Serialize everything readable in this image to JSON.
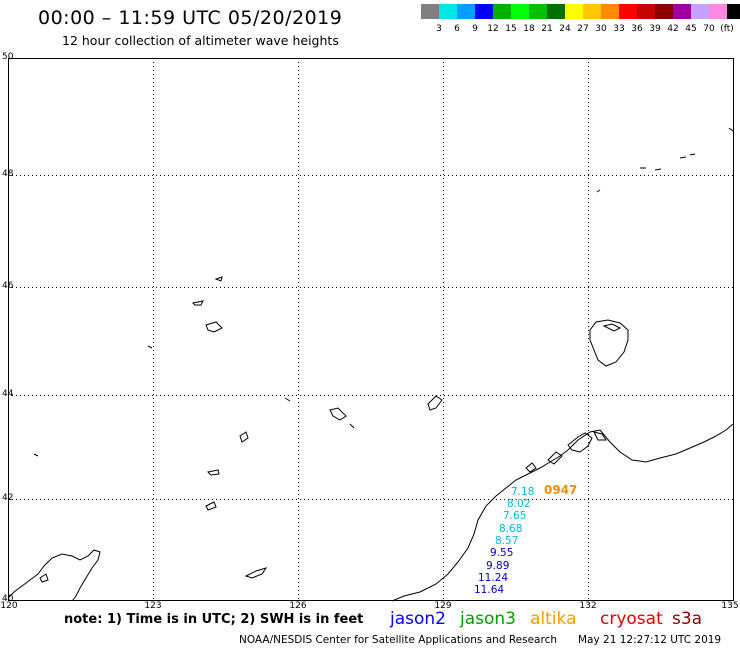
{
  "header": {
    "title": "00:00 – 11:59 UTC 05/20/2019",
    "subtitle": "12 hour collection of altimeter wave heights"
  },
  "legend": {
    "unit": "(ft)",
    "items": [
      {
        "color": "#808080",
        "label": ""
      },
      {
        "color": "#00e5e5",
        "label": "3"
      },
      {
        "color": "#00a0ff",
        "label": "6"
      },
      {
        "color": "#0000ff",
        "label": "9"
      },
      {
        "color": "#00b000",
        "label": "12"
      },
      {
        "color": "#00ff00",
        "label": "15"
      },
      {
        "color": "#00c000",
        "label": "18"
      },
      {
        "color": "#007000",
        "label": "21"
      },
      {
        "color": "#ffff00",
        "label": "24"
      },
      {
        "color": "#ffc800",
        "label": "27"
      },
      {
        "color": "#ff8c00",
        "label": "30"
      },
      {
        "color": "#ff0000",
        "label": "33"
      },
      {
        "color": "#c80000",
        "label": "36"
      },
      {
        "color": "#8b0000",
        "label": "39"
      },
      {
        "color": "#a000a0",
        "label": "42"
      },
      {
        "color": "#c8a0ff",
        "label": "45"
      },
      {
        "color": "#ff88e0",
        "label": "70"
      },
      {
        "color": "#000000",
        "label": ""
      }
    ]
  },
  "axes": {
    "x_labels": [
      "120",
      "123",
      "126",
      "129",
      "132",
      "135"
    ],
    "y_labels": [
      "50",
      "48",
      "46",
      "44",
      "42",
      "40"
    ]
  },
  "observations": [
    {
      "value": "7.18",
      "color": "#00b8e0"
    },
    {
      "value": "8.02",
      "color": "#00b8e0"
    },
    {
      "value": "7.65",
      "color": "#00b8e0"
    },
    {
      "value": "8.68",
      "color": "#00b8e0"
    },
    {
      "value": "8.57",
      "color": "#00b8e0"
    },
    {
      "value": "9.55",
      "color": "#0000c8"
    },
    {
      "value": "9.89",
      "color": "#0000c8"
    },
    {
      "value": "11.24",
      "color": "#0000c8"
    },
    {
      "value": "11.64",
      "color": "#0000c8"
    }
  ],
  "pass_time": {
    "label": "0947",
    "color": "#ee9000"
  },
  "footer": {
    "note": "note: 1) Time is in UTC; 2) SWH is in feet",
    "satellites": [
      {
        "name": "jason2",
        "color": "#0000ff"
      },
      {
        "name": "jason3",
        "color": "#00a000"
      },
      {
        "name": "altika",
        "color": "#ff9900"
      },
      {
        "name": "cryosat",
        "color": "#dd0000"
      },
      {
        "name": "s3a",
        "color": "#8b0000"
      }
    ],
    "credit": "NOAA/NESDIS Center for Satellite Applications and Research",
    "timestamp": "May 21 12:27:12 UTC 2019"
  }
}
